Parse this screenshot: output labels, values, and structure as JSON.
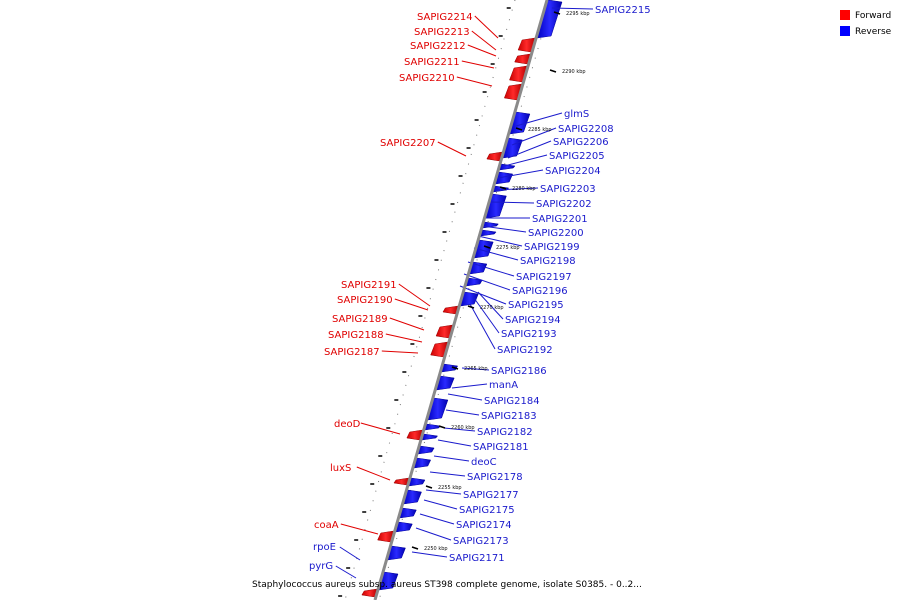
{
  "legend": [
    {
      "label": "Forward",
      "color": "#ff0000"
    },
    {
      "label": "Reverse",
      "color": "#0000ff"
    }
  ],
  "caption": "Staphylococcus aureus subsp. aureus ST398 complete genome, isolate S0385. - 0..2...",
  "kbp_marks": [
    "2295 kbp",
    "2290 kbp",
    "2285 kbp",
    "2280 kbp",
    "2275 kbp",
    "2270 kbp",
    "2265 kbp",
    "2260 kbp",
    "2255 kbp",
    "2250 kbp"
  ],
  "forward_genes": [
    "SAPIG2214",
    "SAPIG2213",
    "SAPIG2212",
    "SAPIG2211",
    "SAPIG2210",
    "SAPIG2207",
    "SAPIG2191",
    "SAPIG2190",
    "SAPIG2189",
    "SAPIG2188",
    "SAPIG2187",
    "deoD",
    "luxS",
    "coaA"
  ],
  "reverse_genes": [
    "SAPIG2215",
    "glmS",
    "SAPIG2208",
    "SAPIG2206",
    "SAPIG2205",
    "SAPIG2204",
    "SAPIG2203",
    "SAPIG2202",
    "SAPIG2201",
    "SAPIG2200",
    "SAPIG2199",
    "SAPIG2198",
    "SAPIG2197",
    "SAPIG2196",
    "SAPIG2195",
    "SAPIG2194",
    "SAPIG2193",
    "SAPIG2192",
    "SAPIG2186",
    "manA",
    "SAPIG2184",
    "SAPIG2183",
    "SAPIG2182",
    "SAPIG2181",
    "deoC",
    "SAPIG2178",
    "SAPIG2177",
    "SAPIG2175",
    "SAPIG2174",
    "SAPIG2173",
    "SAPIG2171",
    "rpoE",
    "pyrG"
  ]
}
